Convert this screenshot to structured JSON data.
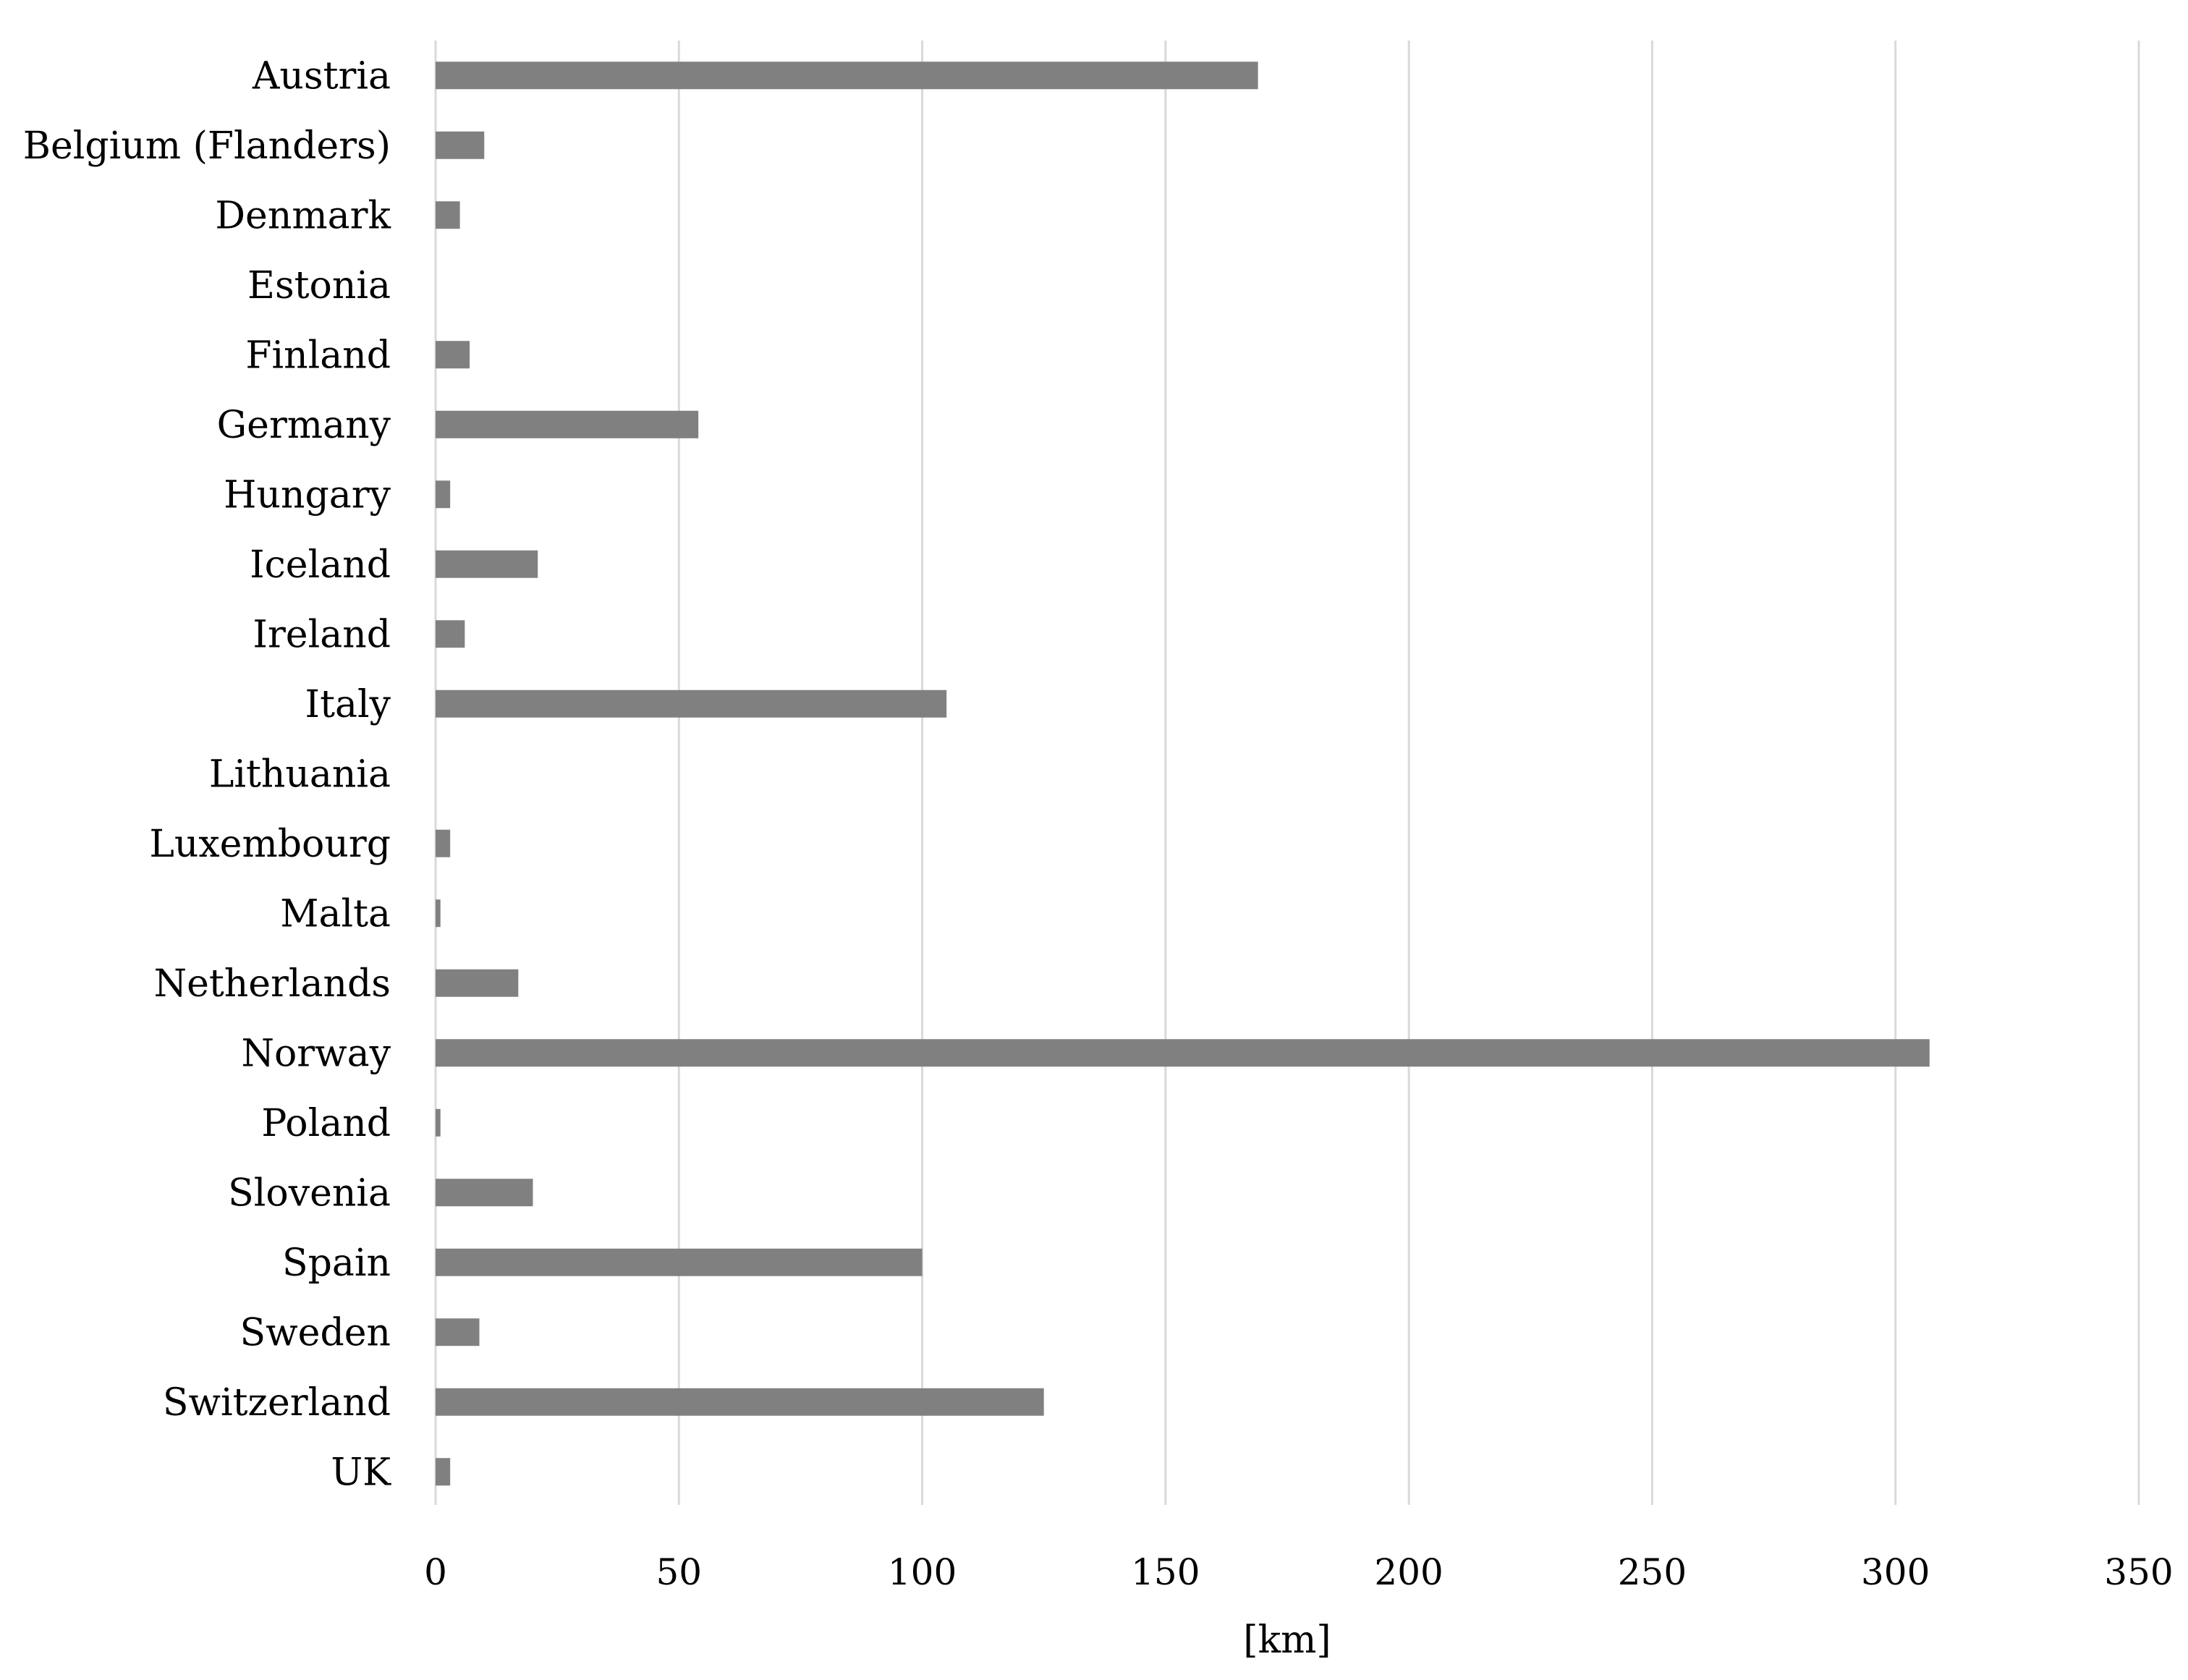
{
  "chart_data": {
    "type": "bar",
    "orientation": "horizontal",
    "categories": [
      "Austria",
      "Belgium (Flanders)",
      "Denmark",
      "Estonia",
      "Finland",
      "Germany",
      "Hungary",
      "Iceland",
      "Ireland",
      "Italy",
      "Lithuania",
      "Luxembourg",
      "Malta",
      "Netherlands",
      "Norway",
      "Poland",
      "Slovenia",
      "Spain",
      "Sweden",
      "Switzerland",
      "UK"
    ],
    "values": [
      169,
      10,
      5,
      0,
      7,
      54,
      3,
      21,
      6,
      105,
      0,
      3,
      1,
      17,
      307,
      1,
      20,
      100,
      9,
      125,
      3
    ],
    "xlabel": "[km]",
    "ylabel": "",
    "xlim": [
      0,
      350
    ],
    "xticks": [
      "0",
      "50",
      "100",
      "150",
      "200",
      "250",
      "300",
      "350"
    ],
    "grid": "vertical",
    "legend": "none",
    "bar_color": "#808080",
    "grid_color": "#d9d9d9"
  }
}
